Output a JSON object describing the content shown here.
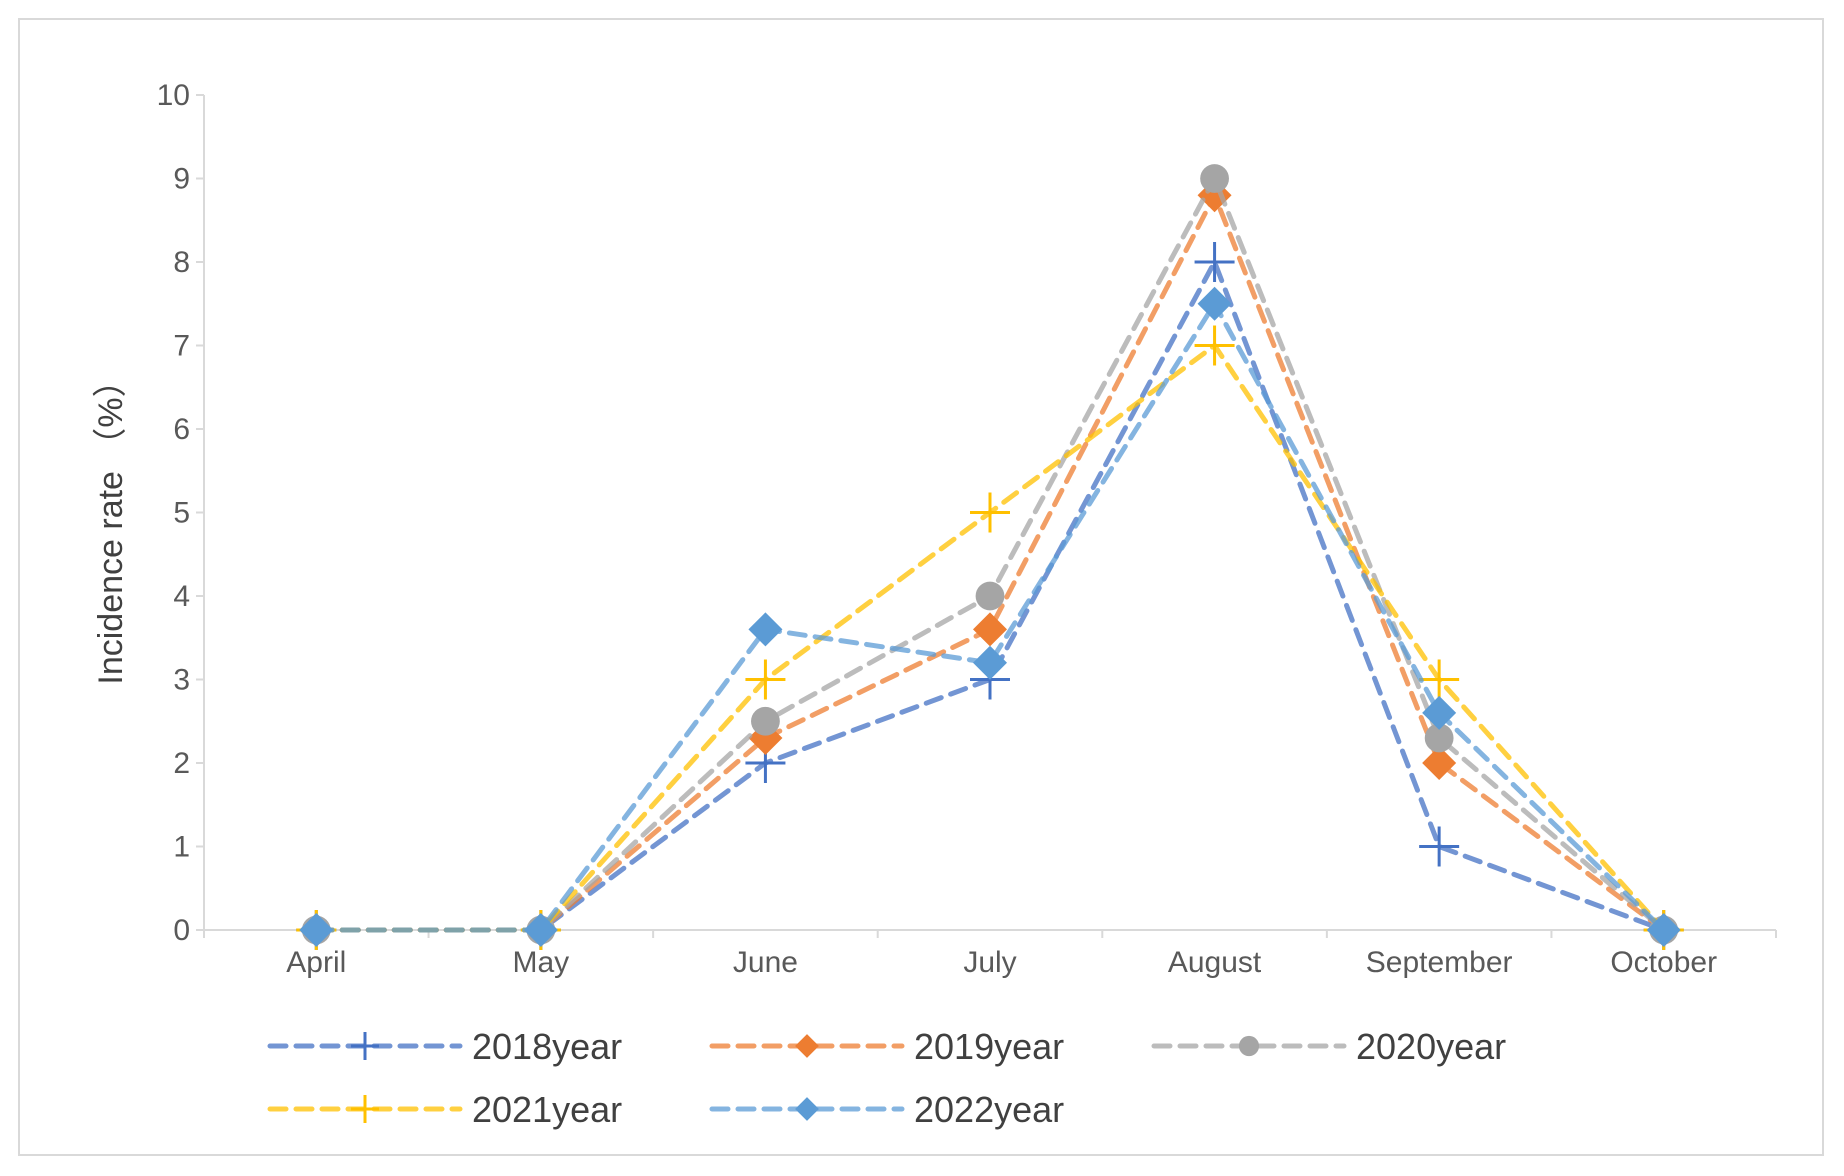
{
  "chart_data": {
    "type": "line",
    "title": "",
    "xlabel": "",
    "ylabel": "Incidence rate （%）",
    "ylim": [
      0,
      10
    ],
    "yticks": [
      0,
      1,
      2,
      3,
      4,
      5,
      6,
      7,
      8,
      9,
      10
    ],
    "grid": false,
    "legend_position": "bottom",
    "categories": [
      "April",
      "May",
      "June",
      "July",
      "August",
      "September",
      "October"
    ],
    "series": [
      {
        "name": "2018year",
        "color": "#4472C4",
        "marker": "plus",
        "values": [
          0,
          0,
          2.0,
          3.0,
          8.0,
          1.0,
          0
        ]
      },
      {
        "name": "2019year",
        "color": "#ED7D31",
        "marker": "diamond",
        "values": [
          0,
          0,
          2.3,
          3.6,
          8.8,
          2.0,
          0
        ]
      },
      {
        "name": "2020year",
        "color": "#A5A5A5",
        "marker": "circle",
        "values": [
          0,
          0,
          2.5,
          4.0,
          9.0,
          2.3,
          0
        ]
      },
      {
        "name": "2021year",
        "color": "#FFC000",
        "marker": "plus",
        "values": [
          0,
          0,
          3.0,
          5.0,
          7.0,
          3.0,
          0
        ]
      },
      {
        "name": "2022year",
        "color": "#5B9BD5",
        "marker": "diamond",
        "values": [
          0,
          0,
          3.6,
          3.2,
          7.5,
          2.6,
          0
        ]
      }
    ]
  }
}
